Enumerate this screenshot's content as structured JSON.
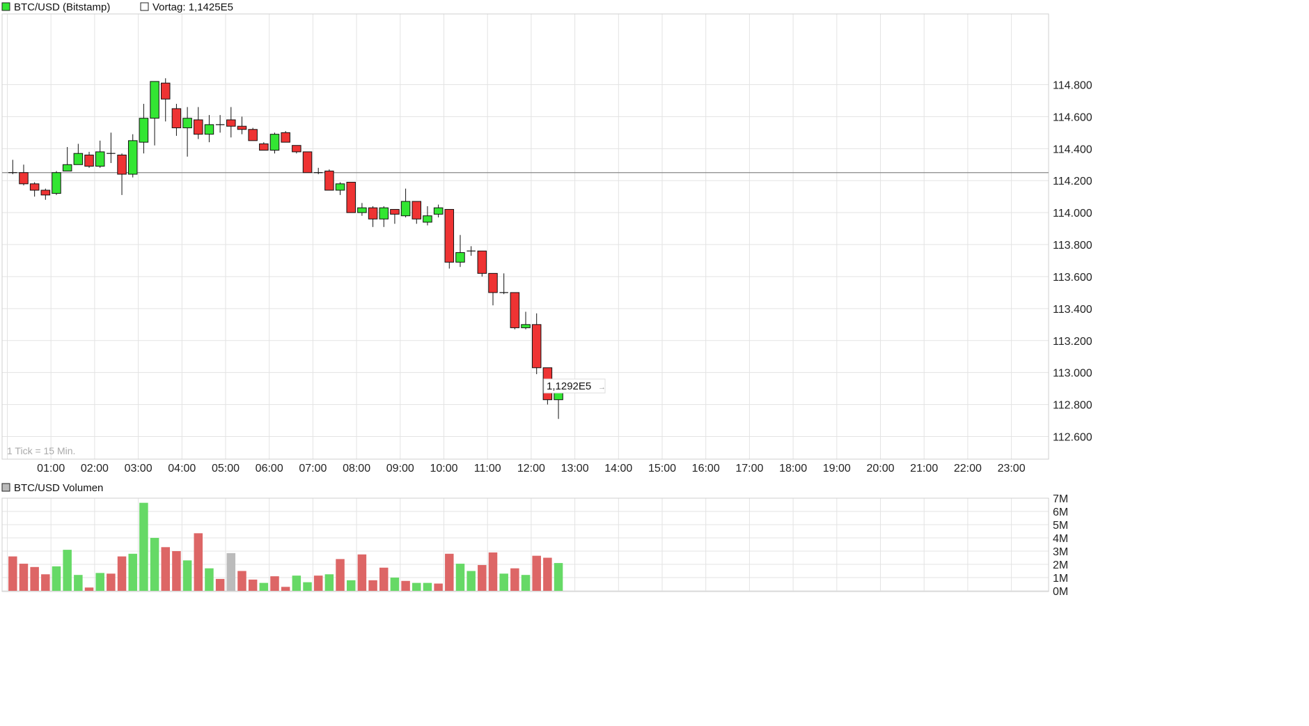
{
  "legend": {
    "main_label": "BTC/USD (Bitstamp)",
    "prev_close_label": "Vortag: 1,1425E5",
    "volume_label": "BTC/USD Volumen"
  },
  "tick_info": "1 Tick = 15 Min.",
  "last_price_label": "1,1292E5",
  "colors": {
    "up": "#33e633",
    "down": "#ee3333",
    "vol_up": "#66d966",
    "vol_down": "#dd6666",
    "vol_neutral": "#bbbbbb",
    "grid": "#e3e3e3",
    "prev_close_line": "#888888"
  },
  "chart_data": [
    {
      "type": "candlestick",
      "title": "BTC/USD (Bitstamp)",
      "prev_close": 114250,
      "ylim": [
        112500,
        115000
      ],
      "y_ticks": [
        112600,
        112800,
        113000,
        113200,
        113400,
        113600,
        113800,
        114000,
        114200,
        114400,
        114600,
        114800
      ],
      "y_tick_labels": [
        "112.600",
        "112.800",
        "113.000",
        "113.200",
        "113.400",
        "113.600",
        "113.800",
        "114.000",
        "114.200",
        "114.400",
        "114.600",
        "114.800"
      ],
      "x_tick_hours": [
        1,
        2,
        3,
        4,
        5,
        6,
        7,
        8,
        9,
        10,
        11,
        12,
        13,
        14,
        15,
        16,
        17,
        18,
        19,
        20,
        21,
        22,
        23
      ],
      "x_tick_labels": [
        "01:00",
        "02:00",
        "03:00",
        "04:00",
        "05:00",
        "06:00",
        "07:00",
        "08:00",
        "09:00",
        "10:00",
        "11:00",
        "12:00",
        "13:00",
        "14:00",
        "15:00",
        "16:00",
        "17:00",
        "18:00",
        "19:00",
        "20:00",
        "21:00",
        "22:00",
        "23:00"
      ],
      "interval_minutes": 15,
      "candles": [
        {
          "time": "00:00",
          "open": 114250,
          "high": 114330,
          "low": 114240,
          "close": 114250
        },
        {
          "time": "00:15",
          "open": 114250,
          "high": 114300,
          "low": 114170,
          "close": 114180
        },
        {
          "time": "00:30",
          "open": 114180,
          "high": 114190,
          "low": 114100,
          "close": 114140
        },
        {
          "time": "00:45",
          "open": 114140,
          "high": 114150,
          "low": 114080,
          "close": 114110
        },
        {
          "time": "01:00",
          "open": 114120,
          "high": 114260,
          "low": 114110,
          "close": 114250
        },
        {
          "time": "01:15",
          "open": 114260,
          "high": 114410,
          "low": 114260,
          "close": 114300
        },
        {
          "time": "01:30",
          "open": 114300,
          "high": 114430,
          "low": 114300,
          "close": 114370
        },
        {
          "time": "01:45",
          "open": 114360,
          "high": 114380,
          "low": 114280,
          "close": 114290
        },
        {
          "time": "02:00",
          "open": 114290,
          "high": 114450,
          "low": 114280,
          "close": 114380
        },
        {
          "time": "02:15",
          "open": 114370,
          "high": 114500,
          "low": 114310,
          "close": 114370
        },
        {
          "time": "02:30",
          "open": 114360,
          "high": 114370,
          "low": 114110,
          "close": 114240
        },
        {
          "time": "02:45",
          "open": 114240,
          "high": 114490,
          "low": 114220,
          "close": 114450
        },
        {
          "time": "03:00",
          "open": 114440,
          "high": 114680,
          "low": 114370,
          "close": 114590
        },
        {
          "time": "03:15",
          "open": 114590,
          "high": 114820,
          "low": 114420,
          "close": 114820
        },
        {
          "time": "03:30",
          "open": 114810,
          "high": 114840,
          "low": 114570,
          "close": 114710
        },
        {
          "time": "03:45",
          "open": 114650,
          "high": 114680,
          "low": 114480,
          "close": 114530
        },
        {
          "time": "04:00",
          "open": 114530,
          "high": 114660,
          "low": 114350,
          "close": 114590
        },
        {
          "time": "04:15",
          "open": 114580,
          "high": 114660,
          "low": 114460,
          "close": 114490
        },
        {
          "time": "04:30",
          "open": 114490,
          "high": 114610,
          "low": 114440,
          "close": 114550
        },
        {
          "time": "04:45",
          "open": 114550,
          "high": 114610,
          "low": 114500,
          "close": 114540
        },
        {
          "time": "05:00",
          "open": 114580,
          "high": 114660,
          "low": 114470,
          "close": 114540
        },
        {
          "time": "05:15",
          "open": 114540,
          "high": 114600,
          "low": 114490,
          "close": 114520
        },
        {
          "time": "05:30",
          "open": 114520,
          "high": 114530,
          "low": 114450,
          "close": 114450
        },
        {
          "time": "05:45",
          "open": 114430,
          "high": 114440,
          "low": 114390,
          "close": 114390
        },
        {
          "time": "06:00",
          "open": 114390,
          "high": 114500,
          "low": 114370,
          "close": 114490
        },
        {
          "time": "06:15",
          "open": 114500,
          "high": 114510,
          "low": 114440,
          "close": 114440
        },
        {
          "time": "06:30",
          "open": 114420,
          "high": 114420,
          "low": 114370,
          "close": 114380
        },
        {
          "time": "06:45",
          "open": 114380,
          "high": 114380,
          "low": 114250,
          "close": 114250
        },
        {
          "time": "07:00",
          "open": 114240,
          "high": 114280,
          "low": 114240,
          "close": 114250
        },
        {
          "time": "07:15",
          "open": 114260,
          "high": 114270,
          "low": 114140,
          "close": 114140
        },
        {
          "time": "07:30",
          "open": 114140,
          "high": 114190,
          "low": 114110,
          "close": 114180
        },
        {
          "time": "07:45",
          "open": 114190,
          "high": 114190,
          "low": 114000,
          "close": 114000
        },
        {
          "time": "08:00",
          "open": 114000,
          "high": 114060,
          "low": 113980,
          "close": 114030
        },
        {
          "time": "08:15",
          "open": 114030,
          "high": 114040,
          "low": 113910,
          "close": 113960
        },
        {
          "time": "08:30",
          "open": 113960,
          "high": 114040,
          "low": 113910,
          "close": 114030
        },
        {
          "time": "08:45",
          "open": 114020,
          "high": 114020,
          "low": 113930,
          "close": 113990
        },
        {
          "time": "09:00",
          "open": 113980,
          "high": 114150,
          "low": 113970,
          "close": 114070
        },
        {
          "time": "09:15",
          "open": 114070,
          "high": 114070,
          "low": 113930,
          "close": 113960
        },
        {
          "time": "09:30",
          "open": 113940,
          "high": 114040,
          "low": 113920,
          "close": 113980
        },
        {
          "time": "09:45",
          "open": 113990,
          "high": 114050,
          "low": 113970,
          "close": 114030
        },
        {
          "time": "10:00",
          "open": 114020,
          "high": 114020,
          "low": 113650,
          "close": 113690
        },
        {
          "time": "10:15",
          "open": 113690,
          "high": 113860,
          "low": 113660,
          "close": 113750
        },
        {
          "time": "10:30",
          "open": 113750,
          "high": 113790,
          "low": 113730,
          "close": 113760
        },
        {
          "time": "10:45",
          "open": 113760,
          "high": 113760,
          "low": 113600,
          "close": 113620
        },
        {
          "time": "11:00",
          "open": 113620,
          "high": 113620,
          "low": 113420,
          "close": 113500
        },
        {
          "time": "11:15",
          "open": 113500,
          "high": 113620,
          "low": 113490,
          "close": 113500
        },
        {
          "time": "11:30",
          "open": 113500,
          "high": 113500,
          "low": 113270,
          "close": 113280
        },
        {
          "time": "11:45",
          "open": 113280,
          "high": 113380,
          "low": 113270,
          "close": 113300
        },
        {
          "time": "12:00",
          "open": 113300,
          "high": 113370,
          "low": 112990,
          "close": 113030
        },
        {
          "time": "12:15",
          "open": 113030,
          "high": 113030,
          "low": 112800,
          "close": 112830
        },
        {
          "time": "12:30",
          "open": 112830,
          "high": 112940,
          "low": 112710,
          "close": 112920
        }
      ]
    },
    {
      "type": "bar",
      "title": "BTC/USD Volumen",
      "ylim": [
        0,
        7000000
      ],
      "y_ticks": [
        0,
        1000000,
        2000000,
        3000000,
        4000000,
        5000000,
        6000000,
        7000000
      ],
      "y_tick_labels": [
        "0M",
        "1M",
        "2M",
        "3M",
        "4M",
        "5M",
        "6M",
        "7M"
      ],
      "bars": [
        {
          "value": 2600000,
          "dir": "down"
        },
        {
          "value": 2050000,
          "dir": "down"
        },
        {
          "value": 1800000,
          "dir": "down"
        },
        {
          "value": 1250000,
          "dir": "down"
        },
        {
          "value": 1850000,
          "dir": "up"
        },
        {
          "value": 3100000,
          "dir": "up"
        },
        {
          "value": 1200000,
          "dir": "up"
        },
        {
          "value": 250000,
          "dir": "down"
        },
        {
          "value": 1350000,
          "dir": "up"
        },
        {
          "value": 1300000,
          "dir": "down"
        },
        {
          "value": 2600000,
          "dir": "down"
        },
        {
          "value": 2800000,
          "dir": "up"
        },
        {
          "value": 6650000,
          "dir": "up"
        },
        {
          "value": 4000000,
          "dir": "up"
        },
        {
          "value": 3300000,
          "dir": "down"
        },
        {
          "value": 3000000,
          "dir": "down"
        },
        {
          "value": 2300000,
          "dir": "up"
        },
        {
          "value": 4350000,
          "dir": "down"
        },
        {
          "value": 1700000,
          "dir": "up"
        },
        {
          "value": 900000,
          "dir": "down"
        },
        {
          "value": 2850000,
          "dir": "neutral"
        },
        {
          "value": 1500000,
          "dir": "down"
        },
        {
          "value": 850000,
          "dir": "down"
        },
        {
          "value": 600000,
          "dir": "up"
        },
        {
          "value": 1100000,
          "dir": "down"
        },
        {
          "value": 300000,
          "dir": "down"
        },
        {
          "value": 1150000,
          "dir": "up"
        },
        {
          "value": 650000,
          "dir": "up"
        },
        {
          "value": 1150000,
          "dir": "down"
        },
        {
          "value": 1250000,
          "dir": "up"
        },
        {
          "value": 2400000,
          "dir": "down"
        },
        {
          "value": 800000,
          "dir": "up"
        },
        {
          "value": 2750000,
          "dir": "down"
        },
        {
          "value": 800000,
          "dir": "down"
        },
        {
          "value": 1750000,
          "dir": "down"
        },
        {
          "value": 1000000,
          "dir": "up"
        },
        {
          "value": 750000,
          "dir": "down"
        },
        {
          "value": 600000,
          "dir": "up"
        },
        {
          "value": 600000,
          "dir": "up"
        },
        {
          "value": 550000,
          "dir": "down"
        },
        {
          "value": 2800000,
          "dir": "down"
        },
        {
          "value": 2050000,
          "dir": "up"
        },
        {
          "value": 1500000,
          "dir": "up"
        },
        {
          "value": 1950000,
          "dir": "down"
        },
        {
          "value": 2900000,
          "dir": "down"
        },
        {
          "value": 1300000,
          "dir": "up"
        },
        {
          "value": 1700000,
          "dir": "down"
        },
        {
          "value": 1200000,
          "dir": "up"
        },
        {
          "value": 2650000,
          "dir": "down"
        },
        {
          "value": 2500000,
          "dir": "down"
        },
        {
          "value": 2100000,
          "dir": "up"
        }
      ]
    }
  ]
}
